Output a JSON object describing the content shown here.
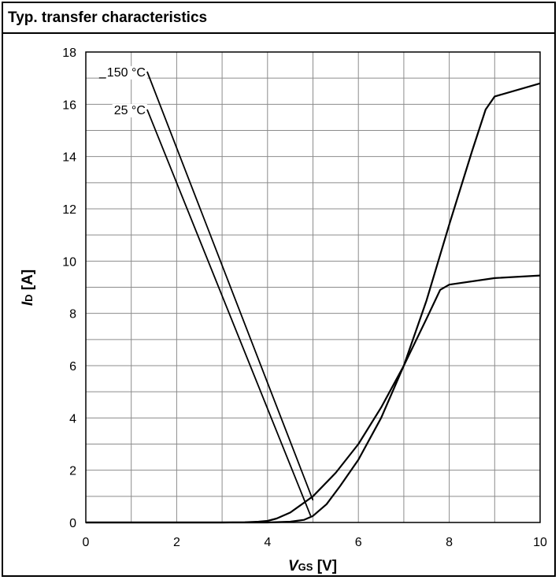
{
  "chart_data": {
    "type": "line",
    "title": "Typ. transfer characteristics",
    "xlabel": {
      "var": "V",
      "sub": "GS",
      "unit": " [V]"
    },
    "ylabel": {
      "var": "I",
      "sub": "D",
      "unit": " [A]"
    },
    "xlim": [
      0,
      10
    ],
    "ylim": [
      0,
      18
    ],
    "xticks": [
      0,
      2,
      4,
      6,
      8,
      10
    ],
    "yticks": [
      0,
      2,
      4,
      6,
      8,
      10,
      12,
      14,
      16,
      18
    ],
    "grid": true,
    "series": [
      {
        "name": "150 °C",
        "x": [
          0,
          3.0,
          3.5,
          3.8,
          4.0,
          4.2,
          4.5,
          5.0,
          5.5,
          6.0,
          6.5,
          7.0,
          7.5,
          7.8,
          8.0,
          9.0,
          10.0
        ],
        "y": [
          0,
          0,
          0.01,
          0.03,
          0.06,
          0.15,
          0.38,
          1.0,
          1.9,
          3.0,
          4.4,
          6.0,
          7.8,
          8.9,
          9.1,
          9.35,
          9.45
        ]
      },
      {
        "name": "25 °C",
        "x": [
          0,
          4.0,
          4.5,
          4.8,
          5.0,
          5.3,
          5.6,
          6.0,
          6.5,
          7.0,
          7.5,
          8.0,
          8.5,
          8.8,
          9.0,
          10.0
        ],
        "y": [
          0,
          0,
          0.03,
          0.1,
          0.25,
          0.7,
          1.4,
          2.4,
          4.0,
          6.0,
          8.5,
          11.4,
          14.2,
          15.8,
          16.3,
          16.8
        ]
      }
    ],
    "annotations": [
      {
        "label": "150 °C",
        "at": [
          1.35,
          17.25
        ],
        "target": [
          5.0,
          0.85
        ]
      },
      {
        "label": "25 °C",
        "at": [
          1.35,
          15.8
        ],
        "target": [
          4.95,
          0.25
        ]
      }
    ]
  }
}
